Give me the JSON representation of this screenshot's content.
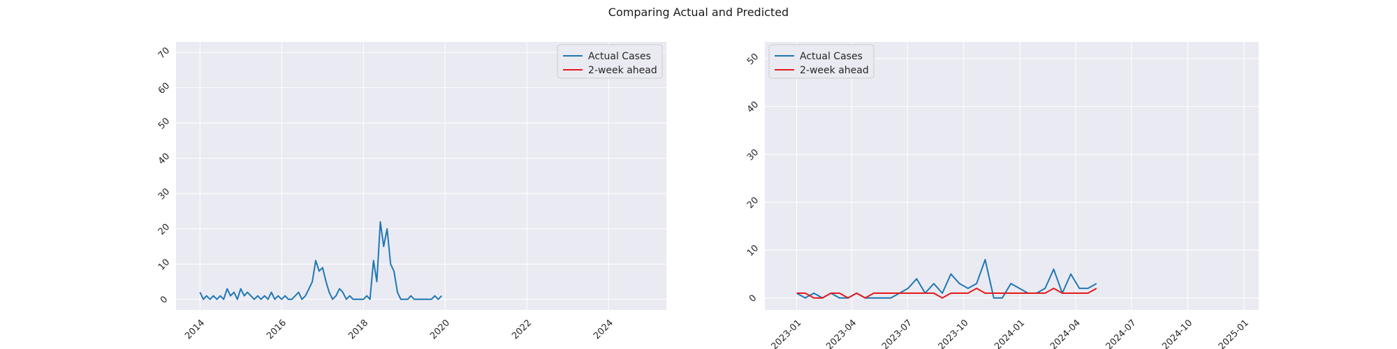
{
  "title": "Comparing Actual and Predicted",
  "colors": {
    "actual": "#1f77b4",
    "predicted": "#e31a1c",
    "panel": "#eaeaf2",
    "grid": "#ffffff"
  },
  "chart_data": [
    {
      "type": "line",
      "title": "",
      "xlabel": "",
      "ylabel": "",
      "x_ticks": [
        "2014",
        "2016",
        "2018",
        "2020",
        "2022",
        "2024"
      ],
      "y_ticks": [
        0,
        10,
        20,
        30,
        40,
        50,
        60,
        70
      ],
      "xlim": [
        "2013-06",
        "2025-06"
      ],
      "ylim": [
        -3,
        73
      ],
      "legend": {
        "position": "top-right",
        "entries": [
          "Actual Cases",
          "2-week ahead"
        ]
      },
      "series": [
        {
          "name": "Actual Cases",
          "points": [
            [
              "2014-01",
              2
            ],
            [
              "2014-02",
              0
            ],
            [
              "2014-03",
              1
            ],
            [
              "2014-04",
              0
            ],
            [
              "2014-05",
              1
            ],
            [
              "2014-06",
              0
            ],
            [
              "2014-07",
              1
            ],
            [
              "2014-08",
              0
            ],
            [
              "2014-09",
              3
            ],
            [
              "2014-10",
              1
            ],
            [
              "2014-11",
              2
            ],
            [
              "2014-12",
              0
            ],
            [
              "2015-01",
              3
            ],
            [
              "2015-02",
              1
            ],
            [
              "2015-03",
              2
            ],
            [
              "2015-04",
              1
            ],
            [
              "2015-05",
              0
            ],
            [
              "2015-06",
              1
            ],
            [
              "2015-07",
              0
            ],
            [
              "2015-08",
              1
            ],
            [
              "2015-09",
              0
            ],
            [
              "2015-10",
              2
            ],
            [
              "2015-11",
              0
            ],
            [
              "2015-12",
              1
            ],
            [
              "2016-01",
              0
            ],
            [
              "2016-02",
              1
            ],
            [
              "2016-03",
              0
            ],
            [
              "2016-04",
              0
            ],
            [
              "2016-05",
              1
            ],
            [
              "2016-06",
              2
            ],
            [
              "2016-07",
              0
            ],
            [
              "2016-08",
              1
            ],
            [
              "2016-09",
              3
            ],
            [
              "2016-10",
              5
            ],
            [
              "2016-11",
              11
            ],
            [
              "2016-12",
              8
            ],
            [
              "2017-01",
              9
            ],
            [
              "2017-02",
              5
            ],
            [
              "2017-03",
              2
            ],
            [
              "2017-04",
              0
            ],
            [
              "2017-05",
              1
            ],
            [
              "2017-06",
              3
            ],
            [
              "2017-07",
              2
            ],
            [
              "2017-08",
              0
            ],
            [
              "2017-09",
              1
            ],
            [
              "2017-10",
              0
            ],
            [
              "2017-11",
              0
            ],
            [
              "2017-12",
              0
            ],
            [
              "2018-01",
              0
            ],
            [
              "2018-02",
              1
            ],
            [
              "2018-03",
              0
            ],
            [
              "2018-04",
              11
            ],
            [
              "2018-05",
              5
            ],
            [
              "2018-06",
              22
            ],
            [
              "2018-07",
              15
            ],
            [
              "2018-08",
              20
            ],
            [
              "2018-09",
              10
            ],
            [
              "2018-10",
              8
            ],
            [
              "2018-11",
              2
            ],
            [
              "2018-12",
              0
            ],
            [
              "2019-01",
              0
            ],
            [
              "2019-02",
              0
            ],
            [
              "2019-03",
              1
            ],
            [
              "2019-04",
              0
            ],
            [
              "2019-05",
              0
            ],
            [
              "2019-06",
              0
            ],
            [
              "2019-07",
              0
            ],
            [
              "2019-08",
              0
            ],
            [
              "2019-09",
              0
            ],
            [
              "2019-10",
              1
            ],
            [
              "2019-11",
              0
            ],
            [
              "2019-12",
              1
            ]
          ]
        },
        {
          "name": "2-week ahead",
          "points": []
        }
      ]
    },
    {
      "type": "line",
      "title": "",
      "xlabel": "",
      "ylabel": "",
      "x_ticks": [
        "2023-01",
        "2023-04",
        "2023-07",
        "2023-10",
        "2024-01",
        "2024-04",
        "2024-07",
        "2024-10",
        "2025-01"
      ],
      "y_ticks": [
        0,
        10,
        20,
        30,
        40,
        50
      ],
      "xlim": [
        "2022-11-10",
        "2025-01-25"
      ],
      "ylim": [
        -2.5,
        53.5
      ],
      "legend": {
        "position": "top-left",
        "entries": [
          "Actual Cases",
          "2-week ahead"
        ]
      },
      "series": [
        {
          "name": "Actual Cases",
          "points": [
            [
              "2023-01-01",
              1
            ],
            [
              "2023-01-15",
              0
            ],
            [
              "2023-01-29",
              1
            ],
            [
              "2023-02-12",
              0
            ],
            [
              "2023-02-26",
              1
            ],
            [
              "2023-03-12",
              0
            ],
            [
              "2023-03-26",
              0
            ],
            [
              "2023-04-09",
              1
            ],
            [
              "2023-04-23",
              0
            ],
            [
              "2023-05-07",
              0
            ],
            [
              "2023-05-21",
              0
            ],
            [
              "2023-06-04",
              0
            ],
            [
              "2023-06-18",
              1
            ],
            [
              "2023-07-02",
              2
            ],
            [
              "2023-07-16",
              4
            ],
            [
              "2023-07-30",
              1
            ],
            [
              "2023-08-13",
              3
            ],
            [
              "2023-08-27",
              1
            ],
            [
              "2023-09-10",
              5
            ],
            [
              "2023-09-24",
              3
            ],
            [
              "2023-10-08",
              2
            ],
            [
              "2023-10-22",
              3
            ],
            [
              "2023-11-05",
              8
            ],
            [
              "2023-11-19",
              0
            ],
            [
              "2023-12-03",
              0
            ],
            [
              "2023-12-17",
              3
            ],
            [
              "2023-12-31",
              2
            ],
            [
              "2024-01-14",
              1
            ],
            [
              "2024-01-28",
              1
            ],
            [
              "2024-02-11",
              2
            ],
            [
              "2024-02-25",
              6
            ],
            [
              "2024-03-10",
              1
            ],
            [
              "2024-03-24",
              5
            ],
            [
              "2024-04-07",
              2
            ],
            [
              "2024-04-21",
              2
            ],
            [
              "2024-05-05",
              3
            ]
          ]
        },
        {
          "name": "2-week ahead",
          "points": [
            [
              "2023-01-01",
              1
            ],
            [
              "2023-01-15",
              1
            ],
            [
              "2023-01-29",
              0
            ],
            [
              "2023-02-12",
              0
            ],
            [
              "2023-02-26",
              1
            ],
            [
              "2023-03-12",
              1
            ],
            [
              "2023-03-26",
              0
            ],
            [
              "2023-04-09",
              1
            ],
            [
              "2023-04-23",
              0
            ],
            [
              "2023-05-07",
              1
            ],
            [
              "2023-05-21",
              1
            ],
            [
              "2023-06-04",
              1
            ],
            [
              "2023-06-18",
              1
            ],
            [
              "2023-07-02",
              1
            ],
            [
              "2023-07-16",
              1
            ],
            [
              "2023-07-30",
              1
            ],
            [
              "2023-08-13",
              1
            ],
            [
              "2023-08-27",
              0
            ],
            [
              "2023-09-10",
              1
            ],
            [
              "2023-09-24",
              1
            ],
            [
              "2023-10-08",
              1
            ],
            [
              "2023-10-22",
              2
            ],
            [
              "2023-11-05",
              1
            ],
            [
              "2023-11-19",
              1
            ],
            [
              "2023-12-03",
              1
            ],
            [
              "2023-12-17",
              1
            ],
            [
              "2023-12-31",
              1
            ],
            [
              "2024-01-14",
              1
            ],
            [
              "2024-01-28",
              1
            ],
            [
              "2024-02-11",
              1
            ],
            [
              "2024-02-25",
              2
            ],
            [
              "2024-03-10",
              1
            ],
            [
              "2024-03-24",
              1
            ],
            [
              "2024-04-07",
              1
            ],
            [
              "2024-04-21",
              1
            ],
            [
              "2024-05-05",
              2
            ]
          ]
        }
      ]
    }
  ]
}
